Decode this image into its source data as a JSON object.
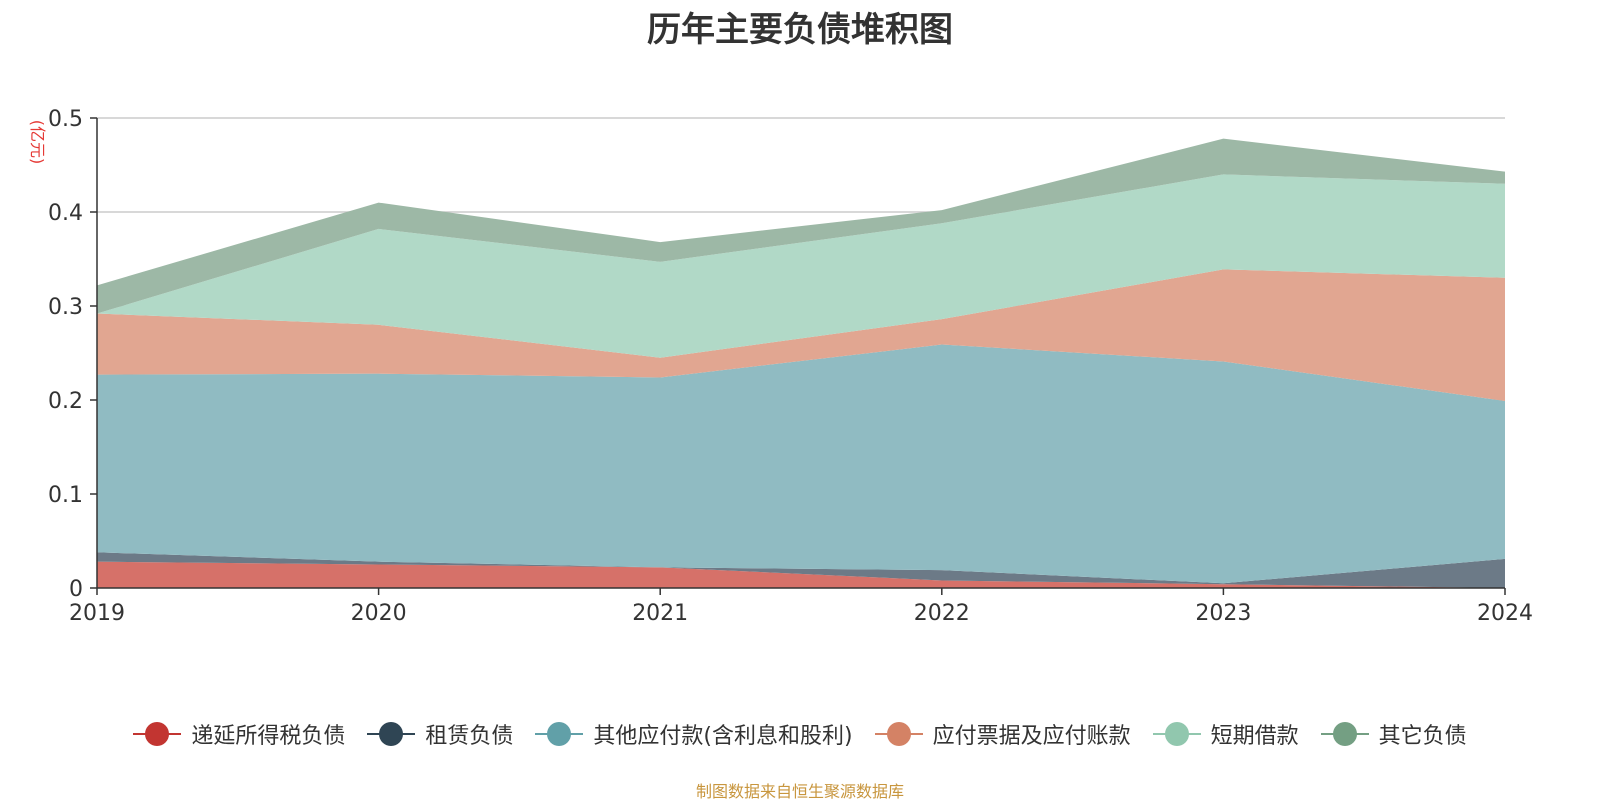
{
  "chart_data": {
    "type": "area",
    "stacked": true,
    "title": "历年主要负债堆积图",
    "unit": "(亿元)",
    "x": [
      "2019",
      "2020",
      "2021",
      "2022",
      "2023",
      "2024"
    ],
    "ylim": [
      0,
      0.5
    ],
    "yticks": [
      0,
      0.1,
      0.2,
      0.3,
      0.4,
      0.5
    ],
    "ytick_labels": [
      "0",
      "0.1",
      "0.2",
      "0.3",
      "0.4",
      "0.5"
    ],
    "grid": true,
    "legend_position": "bottom",
    "series": [
      {
        "name": "递延所得税负债",
        "color": "#c23531",
        "fill": "#d67169",
        "values": [
          0.028,
          0.025,
          0.022,
          0.008,
          0.004,
          0.0
        ]
      },
      {
        "name": "租赁负债",
        "color": "#2f4554",
        "fill": "#6c7a87",
        "values": [
          0.01,
          0.003,
          0.0,
          0.011,
          0.001,
          0.031
        ]
      },
      {
        "name": "其他应付款(含利息和股利)",
        "color": "#61a0a8",
        "fill": "#90bbc2",
        "values": [
          0.189,
          0.2,
          0.202,
          0.24,
          0.236,
          0.168
        ]
      },
      {
        "name": "应付票据及应付账款",
        "color": "#d48265",
        "fill": "#e1a691",
        "values": [
          0.065,
          0.052,
          0.021,
          0.027,
          0.098,
          0.131
        ]
      },
      {
        "name": "短期借款",
        "color": "#91c7ae",
        "fill": "#b1d9c7",
        "values": [
          0.0,
          0.102,
          0.102,
          0.102,
          0.101,
          0.1
        ]
      },
      {
        "name": "其它负债",
        "color": "#749f83",
        "fill": "#9db8a6",
        "values": [
          0.03,
          0.028,
          0.021,
          0.014,
          0.038,
          0.013
        ]
      }
    ]
  },
  "source_note": "制图数据来自恒生聚源数据库"
}
